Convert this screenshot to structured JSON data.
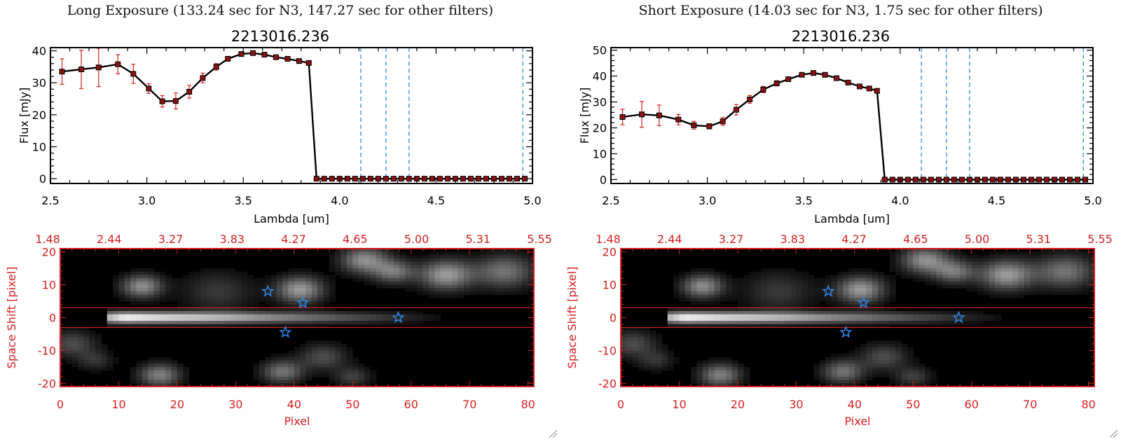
{
  "colors": {
    "accent_red": "#d42020",
    "marker": "#8b1010",
    "star": "#2f82e0",
    "guide_line": "#2a8ee0"
  },
  "panels": [
    {
      "exposure_title": "Long Exposure (133.24 sec for N3, 147.27 sec for other filters)",
      "spectrum": {
        "object_id": "2213016.236",
        "ylabel": "Flux [mJy]",
        "xlabel": "Lambda [um]",
        "xlim": [
          2.5,
          5.0
        ],
        "ylim": [
          -1.5,
          41
        ],
        "xticks": [
          "2.5",
          "3.0",
          "3.5",
          "4.0",
          "4.5",
          "5.0"
        ],
        "yticks": [
          "0",
          "10",
          "20",
          "30",
          "40"
        ]
      },
      "image": {
        "ylabel": "Space Shift [pixel]",
        "xlabel": "Pixel",
        "xticks": [
          "0",
          "10",
          "20",
          "30",
          "40",
          "50",
          "60",
          "70",
          "80"
        ],
        "yticks": [
          "20",
          "10",
          "0",
          "-10",
          "-20"
        ],
        "top_ticks": [
          "1.48",
          "2.44",
          "3.27",
          "3.83",
          "4.27",
          "4.65",
          "5.00",
          "5.31",
          "5.55"
        ]
      }
    },
    {
      "exposure_title": "Short Exposure (14.03 sec for N3, 1.75 sec for other filters)",
      "spectrum": {
        "object_id": "2213016.236",
        "ylabel": "Flux [mJy]",
        "xlabel": "Lambda [um]",
        "xlim": [
          2.5,
          5.0
        ],
        "ylim": [
          -1.5,
          51
        ],
        "xticks": [
          "2.5",
          "3.0",
          "3.5",
          "4.0",
          "4.5",
          "5.0"
        ],
        "yticks": [
          "0",
          "10",
          "20",
          "30",
          "40",
          "50"
        ]
      },
      "image": {
        "ylabel": "Space Shift [pixel]",
        "xlabel": "Pixel",
        "xticks": [
          "0",
          "10",
          "20",
          "30",
          "40",
          "50",
          "60",
          "70",
          "80"
        ],
        "yticks": [
          "20",
          "10",
          "0",
          "-10",
          "-20"
        ],
        "top_ticks": [
          "1.48",
          "2.44",
          "3.27",
          "3.83",
          "4.27",
          "4.65",
          "5.00",
          "5.31",
          "5.55"
        ]
      }
    }
  ],
  "chart_data": [
    {
      "type": "line",
      "title": "2213016.236",
      "xlabel": "Lambda [um]",
      "ylabel": "Flux [mJy]",
      "xlim": [
        2.5,
        5.0
      ],
      "ylim": [
        -1.5,
        41
      ],
      "grid": false,
      "x": [
        2.56,
        2.66,
        2.75,
        2.85,
        2.93,
        3.01,
        3.08,
        3.15,
        3.22,
        3.29,
        3.36,
        3.42,
        3.49,
        3.55,
        3.61,
        3.67,
        3.73,
        3.79,
        3.84,
        3.88,
        3.92,
        3.96,
        4.0,
        4.04,
        4.08,
        4.12,
        4.16,
        4.2,
        4.24,
        4.28,
        4.32,
        4.36,
        4.4,
        4.44,
        4.48,
        4.52,
        4.56,
        4.6,
        4.64,
        4.68,
        4.72,
        4.76,
        4.8,
        4.84,
        4.88,
        4.92,
        4.96
      ],
      "y": [
        33.5,
        34.2,
        34.8,
        35.8,
        32.8,
        28.2,
        24.2,
        24.3,
        27.2,
        31.5,
        35.0,
        37.5,
        39.0,
        39.3,
        38.8,
        38.0,
        37.5,
        36.8,
        36.2,
        0,
        0,
        0,
        0,
        0,
        0,
        0,
        0,
        0,
        0,
        0,
        0,
        0,
        0,
        0,
        0,
        0,
        0,
        0,
        0,
        0,
        0,
        0,
        0,
        0,
        0,
        0,
        0
      ],
      "yerr": [
        4,
        6,
        6,
        3,
        3,
        1.5,
        1.8,
        2.5,
        2,
        1.5,
        1,
        0.5,
        0.5,
        0.3,
        0.3,
        0.3,
        0.3,
        0.3,
        0.3,
        0,
        0,
        0,
        0,
        0,
        0,
        0,
        0,
        0,
        0,
        0,
        0,
        0,
        0,
        0,
        0,
        0,
        0,
        0,
        0,
        0,
        0,
        0,
        0,
        0,
        0,
        0,
        0
      ],
      "vlines": [
        4.11,
        4.24,
        4.36,
        4.95
      ]
    },
    {
      "type": "line",
      "title": "2213016.236",
      "xlabel": "Lambda [um]",
      "ylabel": "Flux [mJy]",
      "xlim": [
        2.5,
        5.0
      ],
      "ylim": [
        -1.5,
        51
      ],
      "grid": false,
      "x": [
        2.56,
        2.66,
        2.75,
        2.85,
        2.93,
        3.01,
        3.08,
        3.15,
        3.22,
        3.29,
        3.36,
        3.42,
        3.49,
        3.55,
        3.61,
        3.67,
        3.73,
        3.79,
        3.84,
        3.88,
        3.92,
        3.96,
        4.0,
        4.04,
        4.08,
        4.12,
        4.16,
        4.2,
        4.24,
        4.28,
        4.32,
        4.36,
        4.4,
        4.44,
        4.48,
        4.52,
        4.56,
        4.6,
        4.64,
        4.68,
        4.72,
        4.76,
        4.8,
        4.84,
        4.88,
        4.92,
        4.96
      ],
      "y": [
        24.2,
        25.2,
        24.8,
        23.2,
        21.0,
        20.6,
        22.5,
        27.0,
        31.0,
        34.8,
        37.2,
        38.8,
        40.5,
        41.2,
        40.5,
        39.2,
        37.5,
        36.0,
        35.2,
        34.3,
        0,
        0,
        0,
        0,
        0,
        0,
        0,
        0,
        0,
        0,
        0,
        0,
        0,
        0,
        0,
        0,
        0,
        0,
        0,
        0,
        0,
        0,
        0,
        0,
        0,
        0,
        0
      ],
      "yerr": [
        3,
        5,
        4,
        2,
        1.5,
        1,
        1.5,
        2,
        1.5,
        1.2,
        1,
        0.5,
        0.5,
        0.5,
        0.4,
        0.4,
        0.4,
        0.4,
        0.4,
        0.4,
        0,
        0,
        0,
        0,
        0,
        0,
        0,
        0,
        0,
        0,
        0,
        0,
        0,
        0,
        0,
        0,
        0,
        0,
        0,
        0,
        0,
        0,
        0,
        0,
        0,
        0,
        0
      ],
      "vlines": [
        4.11,
        4.24,
        4.36,
        4.95
      ]
    },
    {
      "type": "heatmap",
      "xlabel": "Pixel",
      "ylabel": "Space Shift [pixel]",
      "xlim": [
        0,
        81
      ],
      "ylim": [
        -21,
        21
      ],
      "top_axis_ticks": [
        "1.48",
        "2.44",
        "3.27",
        "3.83",
        "4.27",
        "4.65",
        "5.00",
        "5.31",
        "5.55"
      ],
      "aperture_lines_y": [
        3,
        -3
      ],
      "blobs": [
        {
          "x": 14,
          "y": 9.5,
          "r": 3.5,
          "v": 0.55
        },
        {
          "x": 41,
          "y": 8.5,
          "r": 4,
          "v": 0.6
        },
        {
          "x": 52,
          "y": 17.5,
          "r": 4,
          "v": 0.55
        },
        {
          "x": 57,
          "y": 14,
          "r": 3.5,
          "v": 0.45
        },
        {
          "x": 66,
          "y": 13,
          "r": 4.5,
          "v": 0.6
        },
        {
          "x": 76,
          "y": 14,
          "r": 5,
          "v": 0.45
        },
        {
          "x": 27,
          "y": 8,
          "r": 6,
          "v": 0.22
        },
        {
          "x": 2,
          "y": -8,
          "r": 4,
          "v": 0.3
        },
        {
          "x": 6,
          "y": -13,
          "r": 3,
          "v": 0.2
        },
        {
          "x": 17,
          "y": -17.5,
          "r": 3.5,
          "v": 0.5
        },
        {
          "x": 38,
          "y": -16.5,
          "r": 3.5,
          "v": 0.45
        },
        {
          "x": 45,
          "y": -12,
          "r": 4,
          "v": 0.3
        },
        {
          "x": 50,
          "y": -18,
          "r": 3,
          "v": 0.25
        }
      ],
      "spectral_trace": {
        "x_start": 8,
        "x_peak": 11,
        "x_end": 68,
        "y": 0
      },
      "stars": [
        {
          "x": 35.5,
          "y": 8
        },
        {
          "x": 41.5,
          "y": 4.5
        },
        {
          "x": 38.5,
          "y": -4.5
        },
        {
          "x": 57.8,
          "y": 0
        }
      ]
    }
  ]
}
